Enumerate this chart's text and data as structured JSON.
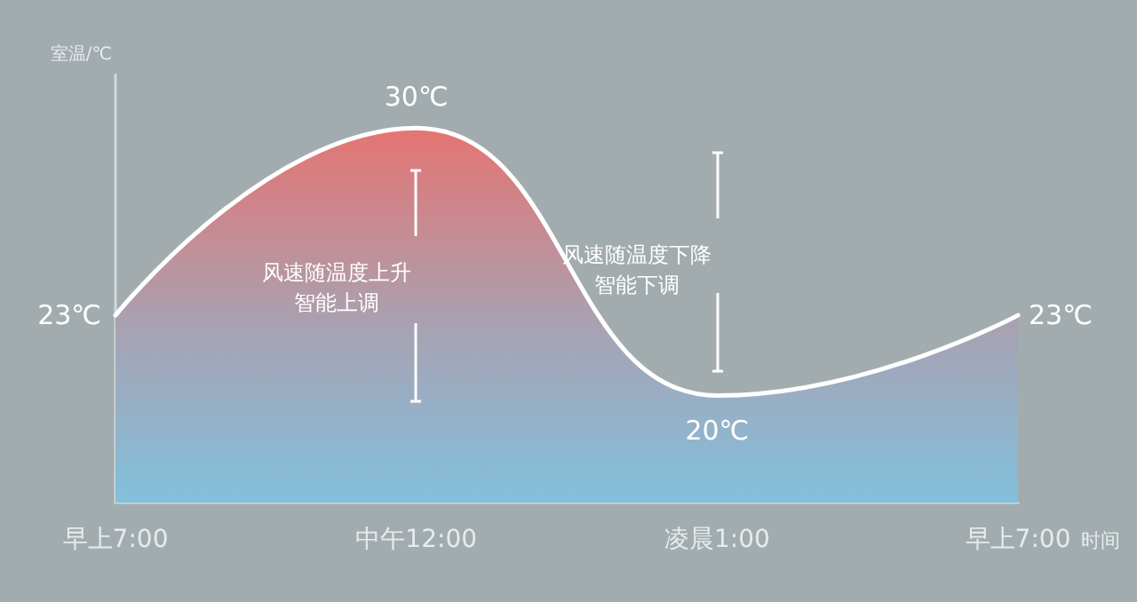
{
  "chart_data": {
    "type": "area",
    "xlabel": "时间",
    "ylabel": "室温/℃",
    "categories": [
      "早上7:00",
      "中午12:00",
      "凌晨1:00",
      "早上7:00"
    ],
    "series": [
      {
        "color": "#ffffff",
        "values": [
          23,
          30,
          20,
          23
        ],
        "value_labels": [
          "23℃",
          "30℃",
          "20℃",
          "23℃"
        ]
      }
    ],
    "ylim": [
      16,
      32
    ],
    "tick_labels": "x",
    "grid": false,
    "marker": "none",
    "line_style": "solid",
    "annotations": [
      "风速随温度上升智能上调",
      "风速随温度下降智能下调"
    ]
  }
}
